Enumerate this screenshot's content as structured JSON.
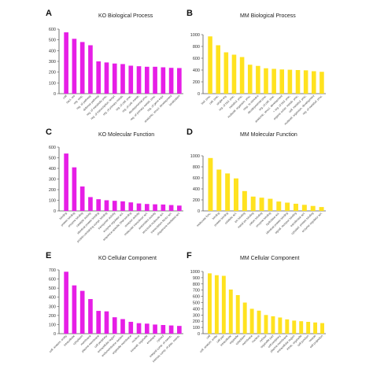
{
  "figure": {
    "colors": {
      "KO": "#e61ee6",
      "MM": "#ffe21f",
      "axis": "#555555"
    },
    "panels": [
      {
        "label": "A",
        "title": "KO Biological Process",
        "color": "#e61ee6",
        "ylim": [
          0,
          600
        ],
        "yticks": [
          0,
          100,
          200,
          300,
          400,
          500,
          600
        ],
        "categories": [
          "cell",
          "bact. res",
          "reg. resp.",
          "reg. of pathway",
          "defense pathway",
          "reg. of metabolic proc.",
          "reg. of transcription, templ.",
          "reg. of primary metab.",
          "reg. of cell. proc.",
          "reg. of cell. metab.",
          "developmental proc.",
          "reg. of primary metab. proc.",
          "reg. of gene expr.",
          "anatomic. struct. development",
          "localization"
        ]
      },
      {
        "label": "B",
        "title": "MM Biological Process",
        "color": "#ffe21f",
        "ylim": [
          0,
          1000
        ],
        "yticks": [
          0,
          200,
          400,
          600,
          800,
          1000
        ],
        "categories": [
          "biol. proc.",
          "cell. proc.",
          "single-org.",
          "reg. of biol. proc.",
          "metabol. proc.",
          "multicell. organism. proc.",
          "resp. to stimulus",
          "developmental proc.",
          "reg. of cell. proc.",
          "anatomic. struct. development",
          "+ reg. of biol. proc.",
          "organic subst. metab. proc.",
          "cell. metabol. proc.",
          "multicell. organism. development",
          "reg. of metabol. proc."
        ]
      },
      {
        "label": "C",
        "title": "KO Molecular Function",
        "color": "#e61ee6",
        "ylim": [
          0,
          600
        ],
        "yticks": [
          0,
          100,
          200,
          300,
          400,
          500,
          600
        ],
        "categories": [
          "binding",
          "protein binding",
          "enzyme binding",
          "catalytic activity",
          "identical protein binding",
          "protein-containing compl. binding",
          "transporter activity",
          "enzyme regulator act.",
          "sequence-specific DNA binding",
          "receptor activity",
          "molecular transducer act.",
          "antioxidant activity",
          "structural molecule act.",
          "transcription factor act.",
          "chaperone-mediated act."
        ]
      },
      {
        "label": "D",
        "title": "MM Molecular Function",
        "color": "#ffe21f",
        "ylim": [
          0,
          1000
        ],
        "yticks": [
          0,
          200,
          400,
          600,
          800,
          1000
        ],
        "categories": [
          "molecular func.",
          "binding",
          "protein binding",
          "catalytic act.",
          "ion binding",
          "metal ion binding",
          "cation binding",
          "enzyme binding",
          "hydrolase act.",
          "identical protein binding",
          "signal. receptor binding",
          "transferase act.",
          "cytoskel. protein binding",
          "enzyme regulator act."
        ]
      },
      {
        "label": "E",
        "title": "KO Cellular Component",
        "color": "#e61ee6",
        "ylim": [
          0,
          700
        ],
        "yticks": [
          0,
          100,
          200,
          300,
          400,
          500,
          600,
          700
        ],
        "categories": [
          "cell. anatom. entity",
          "intracellular",
          "cytoplasm",
          "membrane",
          "plasma membrane",
          "cell periphery",
          "extracellular region",
          "endomembrane system",
          "organelle membrane",
          "nucleus",
          "intracell. organelle",
          "envelope",
          "cytosol",
          "integral comp. of memb.",
          "intrinsic comp. of plas. memb."
        ]
      },
      {
        "label": "F",
        "title": "MM Cellular Component",
        "color": "#ffe21f",
        "ylim": [
          0,
          1000
        ],
        "yticks": [
          0,
          100,
          200,
          300,
          400,
          500,
          600,
          700,
          800,
          900,
          1000
        ],
        "categories": [
          "cell",
          "cell. anatom. entity",
          "cell part",
          "intracellular",
          "organelle",
          "cytoplasm",
          "membrane",
          "nucleus",
          "cytosol",
          "organelle part",
          "cell periphery",
          "plasma membrane",
          "extracellular region",
          "intrac. organelle",
          "cell junction",
          "vesicle",
          "cell projection"
        ]
      }
    ]
  },
  "chart_data": [
    {
      "type": "bar",
      "title": "KO Biological Process",
      "ylim": [
        0,
        600
      ],
      "grid": false,
      "categories": [
        "cell",
        "bact. res",
        "reg. resp.",
        "reg. of pathway",
        "defense pathway",
        "reg. of metabolic proc.",
        "reg. of transcription, templ.",
        "reg. of primary metab.",
        "reg. of cell. proc.",
        "reg. of cell. metab.",
        "developmental proc.",
        "reg. of primary metab. proc.",
        "reg. of gene expr.",
        "anatomic. struct. development",
        "localization"
      ],
      "values": [
        570,
        510,
        480,
        450,
        300,
        290,
        280,
        275,
        260,
        255,
        250,
        250,
        245,
        240,
        238
      ]
    },
    {
      "type": "bar",
      "title": "MM Biological Process",
      "ylim": [
        0,
        1000
      ],
      "grid": false,
      "categories": [
        "biol. proc.",
        "cell. proc.",
        "single-org.",
        "reg. of biol. proc.",
        "metabol. proc.",
        "multicell. organism. proc.",
        "resp. to stimulus",
        "developmental proc.",
        "reg. of cell. proc.",
        "anatomic. struct. development",
        "+ reg. of biol. proc.",
        "organic subst. metab. proc.",
        "cell. metabol. proc.",
        "multicell. organism. development",
        "reg. of metabol. proc."
      ],
      "values": [
        970,
        820,
        700,
        660,
        620,
        490,
        470,
        430,
        420,
        410,
        405,
        400,
        395,
        380,
        370
      ]
    },
    {
      "type": "bar",
      "title": "KO Molecular Function",
      "ylim": [
        0,
        600
      ],
      "grid": false,
      "categories": [
        "binding",
        "protein binding",
        "enzyme binding",
        "catalytic activity",
        "identical protein binding",
        "protein-containing compl. binding",
        "transporter activity",
        "enzyme regulator act.",
        "sequence-specific DNA binding",
        "receptor activity",
        "molecular transducer act.",
        "antioxidant activity",
        "structural molecule act.",
        "transcription factor act.",
        "chaperone-mediated act."
      ],
      "values": [
        540,
        410,
        230,
        130,
        110,
        100,
        95,
        90,
        80,
        70,
        65,
        62,
        60,
        55,
        50
      ]
    },
    {
      "type": "bar",
      "title": "MM Molecular Function",
      "ylim": [
        0,
        1000
      ],
      "grid": false,
      "categories": [
        "molecular func.",
        "binding",
        "protein binding",
        "catalytic act.",
        "ion binding",
        "metal ion binding",
        "cation binding",
        "enzyme binding",
        "hydrolase act.",
        "identical protein binding",
        "signal. receptor binding",
        "transferase act.",
        "cytoskel. protein binding",
        "enzyme regulator act."
      ],
      "values": [
        960,
        750,
        680,
        590,
        360,
        260,
        240,
        220,
        170,
        150,
        130,
        110,
        90,
        70
      ]
    },
    {
      "type": "bar",
      "title": "KO Cellular Component",
      "ylim": [
        0,
        700
      ],
      "grid": false,
      "categories": [
        "cell. anatom. entity",
        "intracellular",
        "cytoplasm",
        "membrane",
        "plasma membrane",
        "cell periphery",
        "extracellular region",
        "endomembrane system",
        "organelle membrane",
        "nucleus",
        "intracell. organelle",
        "envelope",
        "cytosol",
        "integral comp. of memb.",
        "intrinsic comp. of plas. memb."
      ],
      "values": [
        680,
        530,
        470,
        380,
        250,
        245,
        180,
        160,
        130,
        115,
        110,
        100,
        95,
        90,
        85
      ]
    },
    {
      "type": "bar",
      "title": "MM Cellular Component",
      "ylim": [
        0,
        1000
      ],
      "grid": false,
      "categories": [
        "cell",
        "cell. anatom. entity",
        "cell part",
        "intracellular",
        "organelle",
        "cytoplasm",
        "membrane",
        "nucleus",
        "cytosol",
        "organelle part",
        "cell periphery",
        "plasma membrane",
        "extracellular region",
        "intrac. organelle",
        "cell junction",
        "vesicle",
        "cell projection"
      ],
      "values": [
        970,
        940,
        930,
        710,
        620,
        500,
        400,
        370,
        300,
        280,
        260,
        230,
        210,
        200,
        190,
        180,
        170
      ]
    }
  ]
}
